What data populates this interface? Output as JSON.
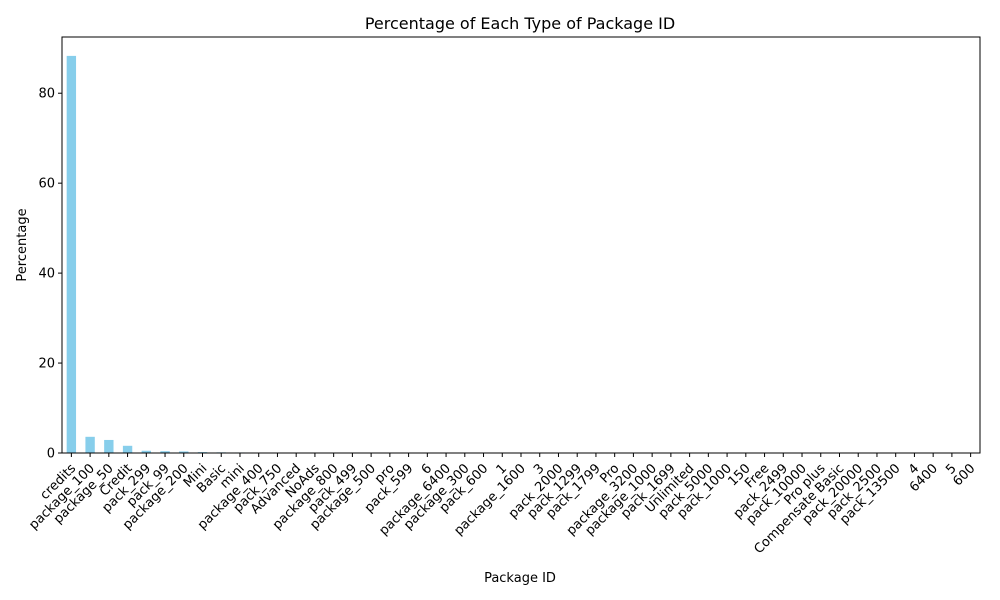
{
  "chart_data": {
    "type": "bar",
    "title": "Percentage of Each Type of Package ID",
    "xlabel": "Package ID",
    "ylabel": "Percentage",
    "ylim": [
      0,
      92.5
    ],
    "yticks": [
      0,
      20,
      40,
      60,
      80
    ],
    "grid": false,
    "bar_color": "#87CEEB",
    "categories": [
      "credits",
      "package_100",
      "package_50",
      "Credit",
      "pack_299",
      "pack_99",
      "package_200",
      "Mini",
      "Basic",
      "mini",
      "package_400",
      "pack_750",
      "Advanced",
      "NoAds",
      "package_800",
      "pack_499",
      "package_500",
      "pro",
      "pack_599",
      "6",
      "package_6400",
      "package_300",
      "pack_600",
      "1",
      "package_1600",
      "3",
      "pack_2000",
      "pack_1299",
      "pack_1799",
      "Pro",
      "package_3200",
      "package_1000",
      "pack_1699",
      "Unlimited",
      "pack_5000",
      "pack_1000",
      "150",
      "Free",
      "pack_2499",
      "pack_10000",
      "Pro plus",
      "Compensate Basic",
      "pack_20000",
      "pack_2500",
      "pack_13500",
      "4",
      "6400",
      "5",
      "600"
    ],
    "values": [
      88.3,
      3.6,
      2.9,
      1.6,
      0.5,
      0.4,
      0.35,
      0.2,
      0.15,
      0.12,
      0.1,
      0.08,
      0.07,
      0.06,
      0.05,
      0.05,
      0.04,
      0.04,
      0.03,
      0.03,
      0.03,
      0.02,
      0.02,
      0.02,
      0.02,
      0.02,
      0.01,
      0.01,
      0.01,
      0.01,
      0.01,
      0.01,
      0.01,
      0.01,
      0.01,
      0.01,
      0.01,
      0.01,
      0.01,
      0.01,
      0.01,
      0.01,
      0.01,
      0.01,
      0.01,
      0.01,
      0.01,
      0.01,
      0.01
    ]
  }
}
